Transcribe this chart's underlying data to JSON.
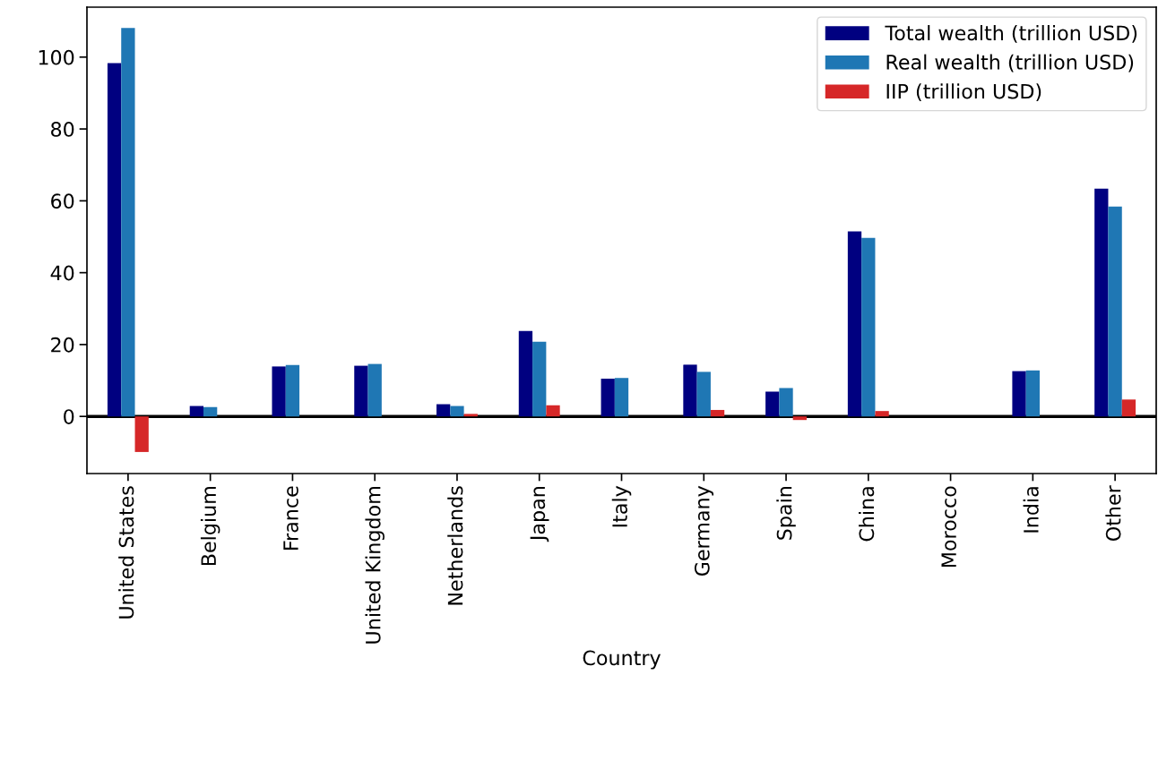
{
  "chart_data": {
    "type": "bar",
    "xlabel": "Country",
    "categories": [
      "United States",
      "Belgium",
      "France",
      "United Kingdom",
      "Netherlands",
      "Japan",
      "Italy",
      "Germany",
      "Spain",
      "China",
      "Morocco",
      "India",
      "Other"
    ],
    "series": [
      {
        "name": "Total wealth (trillion USD)",
        "color": "#000080",
        "values": [
          98.3,
          2.9,
          13.9,
          14.1,
          3.4,
          23.8,
          10.5,
          14.4,
          6.9,
          51.5,
          null,
          12.6,
          63.4
        ]
      },
      {
        "name": "Real wealth (trillion USD)",
        "color": "#1f77b4",
        "values": [
          108.1,
          2.6,
          14.3,
          14.6,
          2.9,
          20.8,
          10.7,
          12.4,
          7.9,
          49.7,
          null,
          12.8,
          58.4
        ]
      },
      {
        "name": "IIP (trillion USD)",
        "color": "#d62728",
        "values": [
          -9.9,
          null,
          null,
          null,
          0.7,
          3.1,
          null,
          1.8,
          -1.0,
          1.5,
          null,
          null,
          4.7
        ]
      }
    ],
    "ylim": [
      -15.9,
      113.9
    ],
    "yticks": [
      0,
      20,
      40,
      60,
      80,
      100
    ],
    "ref_lines": [
      {
        "axis": "y",
        "value": 0,
        "color": "#000000",
        "line_style": "solid"
      }
    ],
    "grid": false,
    "legend": "top right"
  }
}
